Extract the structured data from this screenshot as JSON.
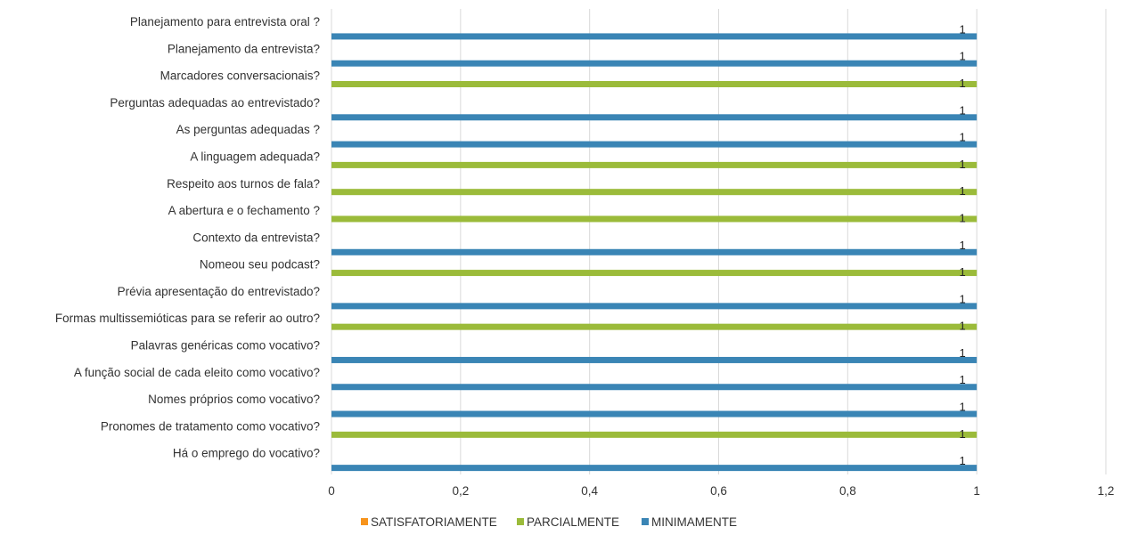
{
  "chart_data": {
    "type": "bar",
    "orientation": "horizontal",
    "categories": [
      "Planejamento para entrevista oral ?",
      "Planejamento da entrevista?",
      "Marcadores conversacionais?",
      "Perguntas adequadas ao entrevistado?",
      "As perguntas  adequadas ?",
      "A linguagem adequada?",
      "Respeito aos turnos de fala?",
      "A abertura e o fechamento ?",
      "Contexto da entrevista?",
      "Nomeou seu podcast?",
      "Prévia apresentação do entrevistado?",
      "Formas multissemióticas para se referir ao outro?",
      "Palavras genéricas como vocativo?",
      "A função social de cada eleito como vocativo?",
      "Nomes próprios como vocativo?",
      "Pronomes de tratamento como vocativo?",
      "Há o emprego do vocativo?"
    ],
    "series": [
      {
        "name": "SATISFATORIAMENTE",
        "color": "#f7941d",
        "values": [
          0,
          0,
          0,
          0,
          0,
          0,
          0,
          0,
          0,
          0,
          0,
          0,
          0,
          0,
          0,
          0,
          0
        ]
      },
      {
        "name": "PARCIALMENTE",
        "color": "#9bbb3a",
        "values": [
          0,
          0,
          1,
          0,
          0,
          1,
          1,
          1,
          0,
          1,
          0,
          1,
          0,
          0,
          0,
          1,
          0
        ]
      },
      {
        "name": "MINIMAMENTE",
        "color": "#3a85b5",
        "values": [
          1,
          1,
          0,
          1,
          1,
          0,
          0,
          0,
          1,
          0,
          1,
          0,
          1,
          1,
          1,
          0,
          1
        ]
      }
    ],
    "data_labels": [
      "1",
      "1",
      "1",
      "1",
      "1",
      "1",
      "1",
      "1",
      "1",
      "1",
      "1",
      "1",
      "1",
      "1",
      "1",
      "1",
      "1"
    ],
    "xlim": [
      0,
      1.2
    ],
    "xticks": [
      "0",
      "0,2",
      "0,4",
      "0,6",
      "0,8",
      "1",
      "1,2"
    ],
    "grid": true,
    "legend_position": "bottom"
  }
}
